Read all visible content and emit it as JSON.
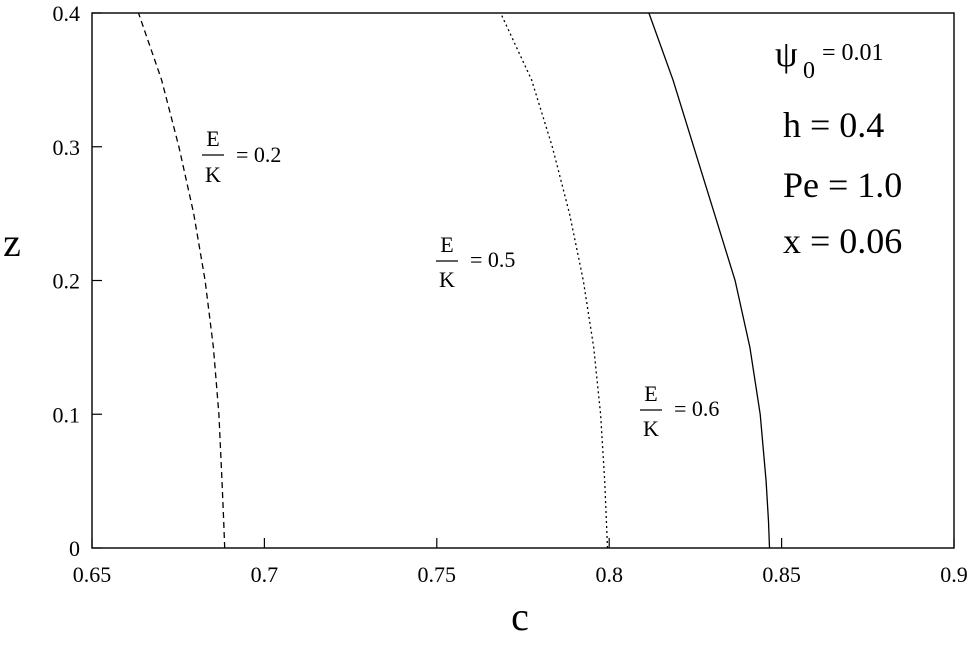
{
  "chart_data": {
    "type": "line",
    "xlabel": "c",
    "ylabel": "z",
    "xlim": [
      0.65,
      0.9
    ],
    "ylim": [
      0,
      0.4
    ],
    "xticks": [
      0.65,
      0.7,
      0.75,
      0.8,
      0.85,
      0.9
    ],
    "xtick_labels": [
      "0.65",
      "0.7",
      "0.75",
      "0.8",
      "0.85",
      "0.9"
    ],
    "yticks": [
      0,
      0.1,
      0.2,
      0.3,
      0.4
    ],
    "ytick_labels": [
      "0",
      "0.1",
      "0.2",
      "0.3",
      "0.4"
    ],
    "grid": false,
    "series": [
      {
        "label_num": "E",
        "label_den": "K",
        "label_value": "= 0.2",
        "style": "dashed",
        "points": [
          [
            0.6885,
            0.0
          ],
          [
            0.6882,
            0.02
          ],
          [
            0.6877,
            0.05
          ],
          [
            0.6868,
            0.1
          ],
          [
            0.6852,
            0.15
          ],
          [
            0.6828,
            0.2
          ],
          [
            0.6795,
            0.25
          ],
          [
            0.6752,
            0.3
          ],
          [
            0.6702,
            0.35
          ],
          [
            0.6635,
            0.4
          ]
        ]
      },
      {
        "label_num": "E",
        "label_den": "K",
        "label_value": "= 0.5",
        "style": "dotted",
        "points": [
          [
            0.7995,
            0.0
          ],
          [
            0.7992,
            0.02
          ],
          [
            0.7987,
            0.05
          ],
          [
            0.7975,
            0.1
          ],
          [
            0.7955,
            0.15
          ],
          [
            0.7925,
            0.2
          ],
          [
            0.7885,
            0.25
          ],
          [
            0.7835,
            0.3
          ],
          [
            0.7775,
            0.35
          ],
          [
            0.7685,
            0.4
          ]
        ]
      },
      {
        "label_num": "E",
        "label_den": "K",
        "label_value": "= 0.6",
        "style": "solid",
        "points": [
          [
            0.8465,
            0.0
          ],
          [
            0.8462,
            0.02
          ],
          [
            0.8455,
            0.05
          ],
          [
            0.8438,
            0.1
          ],
          [
            0.8408,
            0.15
          ],
          [
            0.8365,
            0.2
          ],
          [
            0.8305,
            0.25
          ],
          [
            0.8245,
            0.3
          ],
          [
            0.8185,
            0.35
          ],
          [
            0.8115,
            0.4
          ]
        ]
      }
    ],
    "params": {
      "psi_symbol": "ψ",
      "psi_sub": "0",
      "psi_value": "= 0.01",
      "h": "h = 0.4",
      "pe": "Pe = 1.0",
      "x": "x = 0.06"
    }
  }
}
